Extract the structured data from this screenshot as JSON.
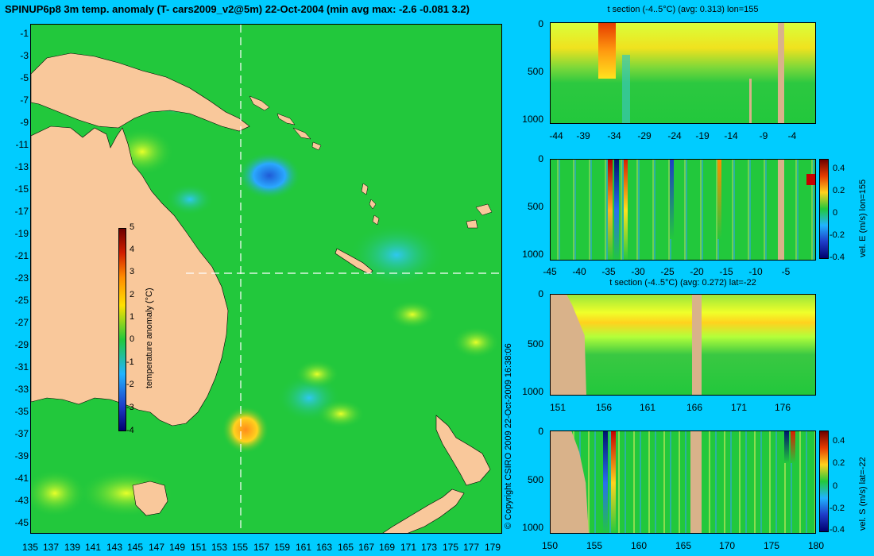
{
  "title": "SPINUP6p8 3m temp. anomaly (T- cars2009_v2@5m) 22-Oct-2004 (min avg max: -2.6 -0.081 3.2)",
  "map": {
    "yticks": [
      "-1",
      "-3",
      "-5",
      "-7",
      "-9",
      "-11",
      "-13",
      "-15",
      "-17",
      "-19",
      "-21",
      "-23",
      "-25",
      "-27",
      "-29",
      "-31",
      "-33",
      "-35",
      "-37",
      "-39",
      "-41",
      "-43",
      "-45"
    ],
    "xticks": [
      "135",
      "137",
      "139",
      "141",
      "143",
      "145",
      "147",
      "149",
      "151",
      "153",
      "155",
      "157",
      "159",
      "161",
      "163",
      "165",
      "167",
      "169",
      "171",
      "173",
      "175",
      "177",
      "179"
    ],
    "colorbar": {
      "label": "temperature anomaly (°C)",
      "ticks": [
        "5",
        "4",
        "3",
        "2",
        "1",
        "0",
        "-1",
        "-2",
        "-3",
        "-4"
      ]
    },
    "colors": {
      "ocean": "#22c83c",
      "land": "#f9c89b",
      "background": "#00ccff"
    }
  },
  "copyright": "© Copyright CSIRO 2009   22-Oct-2009 16:38:06",
  "panels": [
    {
      "title": "t section (-4..5°C) (avg: 0.313) lon=155",
      "yticks": [
        "0",
        "500",
        "1000"
      ],
      "xticks": [
        "-44",
        "-39",
        "-34",
        "-29",
        "-24",
        "-19",
        "-14",
        "-9",
        "-4"
      ]
    },
    {
      "title": "",
      "yticks": [
        "0",
        "500",
        "1000"
      ],
      "xticks": [
        "-45",
        "-40",
        "-35",
        "-30",
        "-25",
        "-20",
        "-15",
        "-10",
        "-5"
      ],
      "cbar_label": "vel. E (m/s) lon=155",
      "cbar_ticks": [
        "0.4",
        "0.2",
        "0",
        "-0.2",
        "-0.4"
      ]
    },
    {
      "title": "t section (-4..5°C) (avg: 0.272) lat=-22",
      "yticks": [
        "0",
        "500",
        "1000"
      ],
      "xticks": [
        "151",
        "156",
        "161",
        "166",
        "171",
        "176"
      ]
    },
    {
      "title": "",
      "yticks": [
        "0",
        "500",
        "1000"
      ],
      "xticks": [
        "150",
        "155",
        "160",
        "165",
        "170",
        "175",
        "180"
      ],
      "cbar_label": "vel. S (m/s) lat=-22",
      "cbar_ticks": [
        "0.4",
        "0.2",
        "0",
        "-0.2",
        "-0.4"
      ]
    }
  ]
}
